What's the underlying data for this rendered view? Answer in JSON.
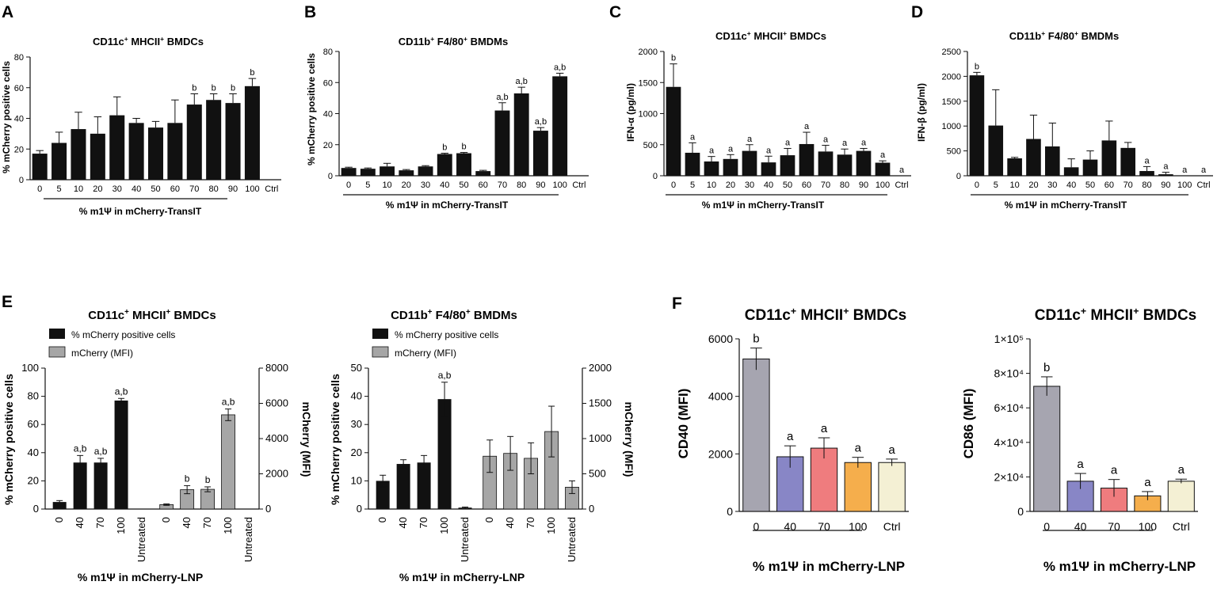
{
  "chart_data": [
    {
      "id": "A",
      "panel_label": "A",
      "type": "bar",
      "title": "CD11c",
      "title_sup1": "+",
      "title_mid": " MHCII",
      "title_sup2": "+",
      "title_end": " BMDCs",
      "ylabel": "% mCherry positive cells",
      "xlabel": "% m1Ψ in mCherry-TransIT",
      "ylim": [
        0,
        80
      ],
      "yticks": [
        "0",
        "20",
        "40",
        "60",
        "80"
      ],
      "categories": [
        "0",
        "5",
        "10",
        "20",
        "30",
        "40",
        "50",
        "60",
        "70",
        "80",
        "90",
        "100",
        "Ctrl"
      ],
      "values": [
        17,
        24,
        33,
        30,
        42,
        37,
        34,
        37,
        49,
        52,
        50,
        61,
        0
      ],
      "errors": [
        2,
        7,
        11,
        11,
        12,
        3,
        4,
        15,
        7,
        4,
        6,
        5,
        0
      ],
      "annotations": [
        "",
        "",
        "",
        "",
        "",
        "",
        "",
        "",
        "b",
        "b",
        "b",
        "b",
        ""
      ],
      "colors": [
        "#111111"
      ]
    },
    {
      "id": "B",
      "panel_label": "B",
      "type": "bar",
      "title": "CD11b",
      "title_sup1": "+",
      "title_mid": " F4/80",
      "title_sup2": "+",
      "title_end": " BMDMs",
      "ylabel": "% mCherry positive cells",
      "xlabel": "% m1Ψ in mCherry-TransIT",
      "ylim": [
        0,
        80
      ],
      "yticks": [
        "0",
        "20",
        "40",
        "60",
        "80"
      ],
      "categories": [
        "0",
        "5",
        "10",
        "20",
        "30",
        "40",
        "50",
        "60",
        "70",
        "80",
        "90",
        "100",
        "Ctrl"
      ],
      "values": [
        5,
        4.5,
        6,
        3.5,
        6,
        14,
        14.5,
        3,
        42,
        53,
        29,
        64,
        0
      ],
      "errors": [
        0.5,
        0.5,
        2,
        0.5,
        0.5,
        0.5,
        0.5,
        0.5,
        5,
        4,
        2,
        2,
        0
      ],
      "annotations": [
        "",
        "",
        "",
        "",
        "",
        "b",
        "b",
        "",
        "a,b",
        "a,b",
        "a,b",
        "a,b",
        ""
      ],
      "colors": [
        "#111111"
      ]
    },
    {
      "id": "C",
      "panel_label": "C",
      "type": "bar",
      "title": "CD11c",
      "title_sup1": "+",
      "title_mid": " MHCII",
      "title_sup2": "+",
      "title_end": " BMDCs",
      "ylabel": "IFN-α (pg/ml)",
      "xlabel": "% m1Ψ in mCherry-TransIT",
      "ylim": [
        0,
        2000
      ],
      "yticks": [
        "0",
        "500",
        "1000",
        "1500",
        "2000"
      ],
      "categories": [
        "0",
        "5",
        "10",
        "20",
        "30",
        "40",
        "50",
        "60",
        "70",
        "80",
        "90",
        "100",
        "Ctrl"
      ],
      "values": [
        1430,
        370,
        230,
        270,
        400,
        215,
        330,
        510,
        390,
        340,
        400,
        210,
        0
      ],
      "errors": [
        370,
        160,
        80,
        70,
        100,
        100,
        110,
        190,
        100,
        90,
        40,
        30,
        0
      ],
      "annotations": [
        "b",
        "a",
        "a",
        "a",
        "a",
        "a",
        "a",
        "a",
        "a",
        "a",
        "a",
        "a",
        "a"
      ],
      "colors": [
        "#111111"
      ]
    },
    {
      "id": "D",
      "panel_label": "D",
      "type": "bar",
      "title": "CD11b",
      "title_sup1": "+",
      "title_mid": " F4/80",
      "title_sup2": "+",
      "title_end": " BMDMs",
      "ylabel": "IFN-β (pg/ml)",
      "xlabel": "% m1Ψ in mCherry-TransIT",
      "ylim": [
        0,
        2500
      ],
      "yticks": [
        "0",
        "500",
        "1000",
        "1500",
        "2000",
        "2500"
      ],
      "categories": [
        "0",
        "5",
        "10",
        "20",
        "30",
        "40",
        "50",
        "60",
        "70",
        "80",
        "90",
        "100",
        "Ctrl"
      ],
      "values": [
        2020,
        1010,
        350,
        740,
        590,
        170,
        325,
        710,
        560,
        95,
        30,
        0,
        0
      ],
      "errors": [
        60,
        720,
        20,
        480,
        470,
        170,
        175,
        390,
        110,
        90,
        40,
        0,
        0
      ],
      "annotations": [
        "b",
        "",
        "",
        "",
        "",
        "",
        "",
        "",
        "",
        "a",
        "a",
        "a",
        "a"
      ],
      "colors": [
        "#111111"
      ]
    },
    {
      "id": "E1",
      "panel_label": "E",
      "type": "bar",
      "title": "CD11c",
      "title_sup1": "+",
      "title_mid": " MHCII",
      "title_sup2": "+",
      "title_end": " BMDCs",
      "ylabel": "% mCherry positive cells",
      "y2label": "mCherry (MFI)",
      "xlabel": "% m1Ψ in mCherry-LNP",
      "ylim": [
        0,
        100
      ],
      "yticks": [
        "0",
        "20",
        "40",
        "60",
        "80",
        "100"
      ],
      "y2lim": [
        0,
        8000
      ],
      "y2ticks": [
        "0",
        "2000",
        "4000",
        "6000",
        "8000"
      ],
      "legend": [
        "% mCherry positive cells",
        "mCherry (MFI)"
      ],
      "categories": [
        "0",
        "40",
        "70",
        "100",
        "Untreated"
      ],
      "series": [
        {
          "name": "% mCherry positive cells",
          "axis": "left",
          "color": "#111111",
          "values": [
            5,
            33,
            33,
            77,
            0
          ],
          "errors": [
            1,
            5,
            3,
            1.5,
            0
          ],
          "annotations": [
            "",
            "a,b",
            "a,b",
            "a,b",
            ""
          ]
        },
        {
          "name": "mCherry (MFI)",
          "axis": "right",
          "color": "#a6a6a6",
          "values": [
            250,
            1100,
            1120,
            5350,
            0
          ],
          "errors": [
            40,
            230,
            140,
            330,
            0
          ],
          "annotations": [
            "",
            "b",
            "b",
            "a,b",
            ""
          ]
        }
      ]
    },
    {
      "id": "E2",
      "panel_label": "",
      "type": "bar",
      "title": "CD11b",
      "title_sup1": "+",
      "title_mid": " F4/80",
      "title_sup2": "+",
      "title_end": " BMDMs",
      "ylabel": "% mCherry positive cells",
      "y2label": "mCherry (MFI)",
      "xlabel": "% m1Ψ in mCherry-LNP",
      "ylim": [
        0,
        50
      ],
      "yticks": [
        "0",
        "10",
        "20",
        "30",
        "40",
        "50"
      ],
      "y2lim": [
        0,
        2000
      ],
      "y2ticks": [
        "0",
        "500",
        "1000",
        "1500",
        "2000"
      ],
      "legend": [
        "% mCherry positive cells",
        "mCherry (MFI)"
      ],
      "categories": [
        "0",
        "40",
        "70",
        "100",
        "Untreated"
      ],
      "series": [
        {
          "name": "% mCherry positive cells",
          "axis": "left",
          "color": "#111111",
          "values": [
            10,
            16,
            16.5,
            39,
            0.5
          ],
          "errors": [
            2,
            1.5,
            2.5,
            6,
            0.2
          ],
          "annotations": [
            "",
            "",
            "",
            "a,b",
            ""
          ]
        },
        {
          "name": "mCherry (MFI)",
          "axis": "right",
          "color": "#a6a6a6",
          "values": [
            750,
            790,
            720,
            1100,
            310
          ],
          "errors": [
            230,
            240,
            220,
            360,
            90
          ],
          "annotations": [
            "",
            "",
            "",
            "",
            ""
          ]
        }
      ]
    },
    {
      "id": "F1",
      "panel_label": "F",
      "type": "bar",
      "title": "CD11c",
      "title_sup1": "+",
      "title_mid": " MHCII",
      "title_sup2": "+",
      "title_end": " BMDCs",
      "ylabel": "CD40 (MFI)",
      "xlabel": "% m1Ψ in mCherry-LNP",
      "ylim": [
        0,
        6000
      ],
      "yticks": [
        "0",
        "2000",
        "4000",
        "6000"
      ],
      "categories": [
        "0",
        "40",
        "70",
        "100",
        "Ctrl"
      ],
      "values": [
        5300,
        1900,
        2200,
        1700,
        1700
      ],
      "errors": [
        380,
        380,
        360,
        180,
        120
      ],
      "annotations": [
        "b",
        "a",
        "a",
        "a",
        "a"
      ],
      "colors": [
        "#a6a5b0",
        "#8886c6",
        "#ef7c7e",
        "#f5ae4c",
        "#f4f0d4"
      ]
    },
    {
      "id": "F2",
      "panel_label": "",
      "type": "bar",
      "title": "CD11c",
      "title_sup1": "+",
      "title_mid": " MHCII",
      "title_sup2": "+",
      "title_end": " BMDCs",
      "ylabel": "CD86 (MFI)",
      "xlabel": "% m1Ψ in mCherry-LNP",
      "ylim": [
        0,
        100000
      ],
      "yticks": [
        "0",
        "2×10⁴",
        "4×10⁴",
        "6×10⁴",
        "8×10⁴",
        "1×10⁵"
      ],
      "categories": [
        "0",
        "40",
        "70",
        "100",
        "Ctrl"
      ],
      "values": [
        72500,
        17500,
        13500,
        9000,
        17500
      ],
      "errors": [
        5500,
        4500,
        5000,
        2500,
        1200
      ],
      "annotations": [
        "b",
        "a",
        "a",
        "a",
        "a"
      ],
      "colors": [
        "#a6a5b0",
        "#8886c6",
        "#ef7c7e",
        "#f5ae4c",
        "#f4f0d4"
      ]
    }
  ]
}
